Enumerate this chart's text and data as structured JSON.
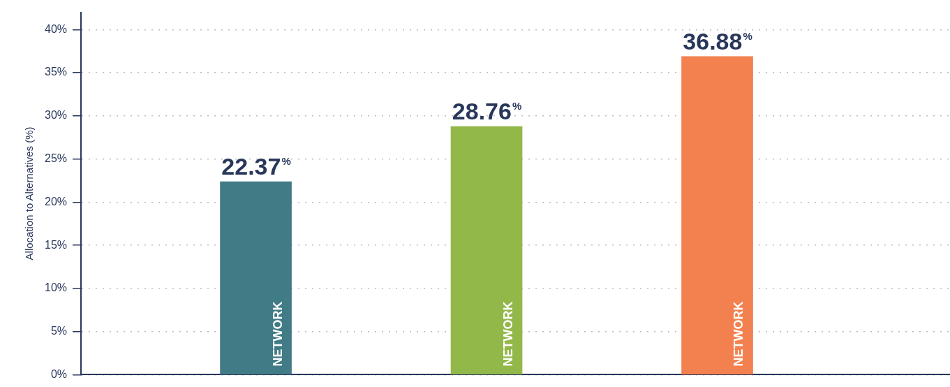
{
  "chart_data": {
    "type": "bar",
    "ylabel": "Allocation to Alternatives (%)",
    "categories": [
      "NETWORK",
      "NETWORK",
      "NETWORK"
    ],
    "values": [
      22.37,
      28.76,
      36.88
    ],
    "colors": [
      "#417b86",
      "#93b84a",
      "#f3814f"
    ],
    "value_labels": [
      "22.37%",
      "28.76%",
      "36.88%"
    ],
    "ylim": [
      0,
      42
    ],
    "yticks": [
      {
        "value": 0,
        "label": "0%"
      },
      {
        "value": 5,
        "label": "5%"
      },
      {
        "value": 10,
        "label": "10%"
      },
      {
        "value": 15,
        "label": "15%"
      },
      {
        "value": 20,
        "label": "20%"
      },
      {
        "value": 25,
        "label": "25%"
      },
      {
        "value": 30,
        "label": "30%"
      },
      {
        "value": 35,
        "label": "35%"
      },
      {
        "value": 40,
        "label": "40%"
      }
    ],
    "grid": "y",
    "legend": false
  }
}
